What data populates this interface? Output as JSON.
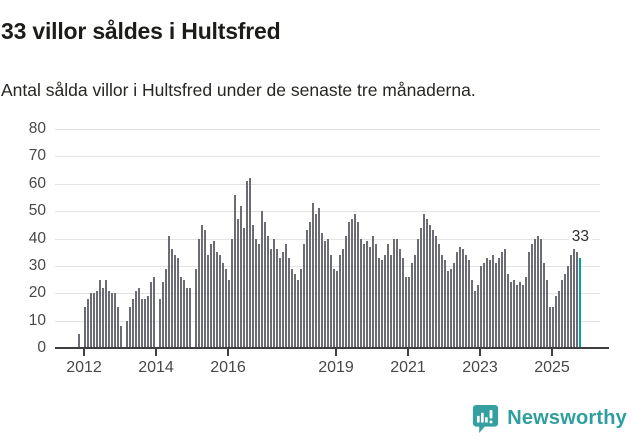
{
  "header": {
    "title": "33 villor såldes i Hultsfred",
    "subtitle": "Antal sålda villor i Hultsfred under de senaste tre månaderna."
  },
  "annotation": {
    "last_value_label": "33"
  },
  "branding": {
    "name": "Newsworthy"
  },
  "colors": {
    "bar": "#6c6c75",
    "highlight": "#00a59b",
    "gridline": "#e3e3e3",
    "axis": "#3f3f3f",
    "tick_text": "#484848",
    "brand_teal": "#2f9e9e"
  },
  "chart_data": {
    "type": "bar",
    "title": "33 villor såldes i Hultsfred",
    "subtitle": "Antal sålda villor i Hultsfred under de senaste tre månaderna.",
    "unit": "sålda villor (rullande tre månader)",
    "frequency": "monthly",
    "x_start": "2011-11",
    "x_end": "2025-10",
    "ylim": [
      0,
      80
    ],
    "grid": true,
    "y_ticks": [
      0,
      10,
      20,
      30,
      40,
      50,
      60,
      70,
      80
    ],
    "x_ticks": [
      2012,
      2014,
      2016,
      2019,
      2021,
      2023,
      2025
    ],
    "highlight_index": 167,
    "highlight_value": 33,
    "values": [
      5,
      0,
      15,
      18,
      20,
      20,
      21,
      25,
      22,
      25,
      21,
      20,
      20,
      15,
      8,
      0,
      10,
      15,
      18,
      21,
      22,
      18,
      18,
      19,
      24,
      26,
      0,
      18,
      24,
      29,
      41,
      36,
      34,
      33,
      26,
      25,
      22,
      22,
      0,
      29,
      40,
      45,
      43,
      34,
      38,
      39,
      35,
      34,
      31,
      29,
      25,
      40,
      56,
      47,
      52,
      44,
      61,
      62,
      45,
      40,
      38,
      50,
      46,
      41,
      36,
      40,
      36,
      33,
      35,
      38,
      33,
      29,
      27,
      25,
      29,
      38,
      43,
      46,
      53,
      49,
      51,
      42,
      39,
      40,
      34,
      29,
      28,
      34,
      36,
      41,
      46,
      47,
      49,
      46,
      40,
      38,
      39,
      37,
      41,
      38,
      33,
      32,
      34,
      38,
      34,
      40,
      40,
      36,
      33,
      26,
      26,
      31,
      34,
      40,
      44,
      49,
      47,
      45,
      43,
      41,
      38,
      34,
      32,
      28,
      29,
      31,
      35,
      37,
      36,
      34,
      32,
      25,
      21,
      23,
      30,
      31,
      33,
      32,
      34,
      31,
      33,
      35,
      36,
      27,
      24,
      25,
      23,
      24,
      23,
      26,
      35,
      38,
      40,
      41,
      40,
      31,
      25,
      15,
      15,
      19,
      21,
      25,
      27,
      30,
      34,
      36,
      35,
      33
    ]
  }
}
